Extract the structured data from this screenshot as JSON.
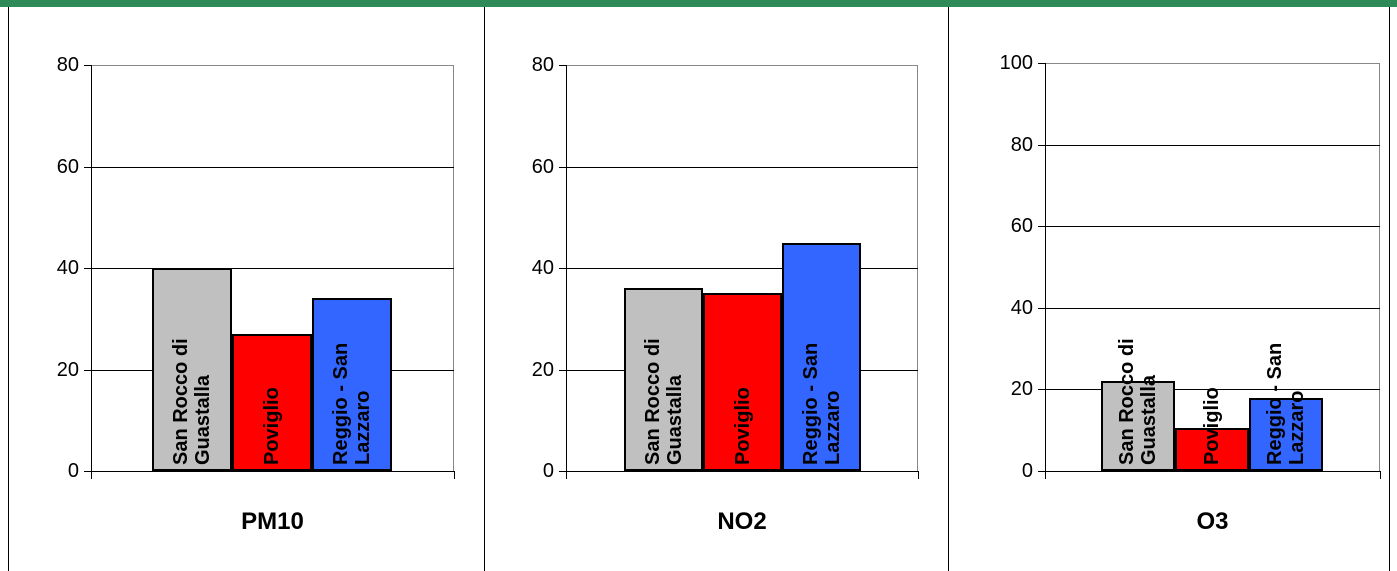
{
  "chart_data": [
    {
      "type": "bar",
      "xlabel": "PM10",
      "categories": [
        "San Rocco di Guastalla",
        "Poviglio",
        "Reggio - San Lazzaro"
      ],
      "values": [
        40,
        27,
        34
      ],
      "colors": [
        "#c0c0c0",
        "#ff0000",
        "#3366ff"
      ],
      "ylim": [
        0,
        80
      ],
      "yticks": [
        0,
        20,
        40,
        60,
        80
      ],
      "grid": true
    },
    {
      "type": "bar",
      "xlabel": "NO2",
      "categories": [
        "San Rocco di Guastalla",
        "Poviglio",
        "Reggio - San Lazzaro"
      ],
      "values": [
        36,
        35,
        45
      ],
      "colors": [
        "#c0c0c0",
        "#ff0000",
        "#3366ff"
      ],
      "ylim": [
        0,
        80
      ],
      "yticks": [
        0,
        20,
        40,
        60,
        80
      ],
      "grid": true
    },
    {
      "type": "bar",
      "xlabel": "O3",
      "categories": [
        "San Rocco di Guastalla",
        "Poviglio",
        "Reggio - San Lazzaro"
      ],
      "values": [
        22,
        10.5,
        18
      ],
      "colors": [
        "#c0c0c0",
        "#ff0000",
        "#3366ff"
      ],
      "ylim": [
        0,
        100
      ],
      "yticks": [
        0,
        20,
        40,
        60,
        80,
        100
      ],
      "grid": true
    }
  ]
}
